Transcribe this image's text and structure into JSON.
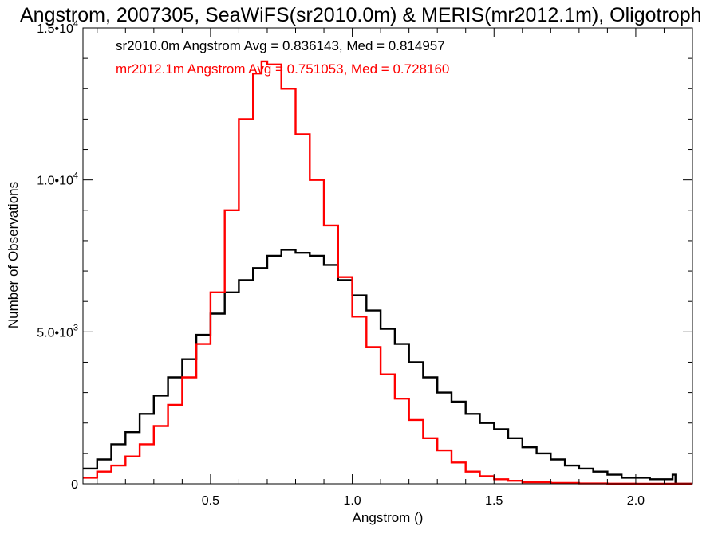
{
  "chart_data": {
    "type": "line",
    "title": "Angstrom, 2007305, SeaWiFS(sr2010.0m) & MERIS(mr2012.1m), Oligotroph",
    "xlabel": "Angstrom ()",
    "ylabel": "Number of Observations",
    "xlim": [
      0.05,
      2.2
    ],
    "ylim": [
      0,
      15000
    ],
    "x_ticks": [
      {
        "value": 0.5,
        "label": "0.5"
      },
      {
        "value": 1.0,
        "label": "1.0"
      },
      {
        "value": 1.5,
        "label": "1.5"
      },
      {
        "value": 2.0,
        "label": "2.0"
      }
    ],
    "y_ticks": [
      {
        "value": 0,
        "base": "0",
        "exp": ""
      },
      {
        "value": 5000,
        "base": "5.0•10",
        "exp": "3"
      },
      {
        "value": 10000,
        "base": "1.0•10",
        "exp": "4"
      },
      {
        "value": 15000,
        "base": "1.5•10",
        "exp": "4"
      }
    ],
    "grid": false,
    "legend_position": "top-left",
    "annotations": [
      {
        "text": "sr2010.0m Angstrom Avg = 0.836143, Med = 0.814957",
        "color": "#000000"
      },
      {
        "text": "mr2012.1m Angstrom Avg = 0.751053, Med = 0.728160",
        "color": "#ff0000"
      }
    ],
    "series": [
      {
        "color": "#000000",
        "style": "histogram-step",
        "x": [
          0.05,
          0.1,
          0.15,
          0.2,
          0.25,
          0.3,
          0.35,
          0.4,
          0.45,
          0.5,
          0.55,
          0.6,
          0.65,
          0.7,
          0.75,
          0.8,
          0.85,
          0.9,
          0.95,
          1.0,
          1.05,
          1.1,
          1.15,
          1.2,
          1.25,
          1.3,
          1.35,
          1.4,
          1.45,
          1.5,
          1.55,
          1.6,
          1.65,
          1.7,
          1.75,
          1.8,
          1.85,
          1.9,
          1.95,
          2.0,
          2.05,
          2.1,
          2.13,
          2.14,
          2.15
        ],
        "y": [
          500,
          800,
          1300,
          1700,
          2300,
          2900,
          3500,
          4100,
          4900,
          5600,
          6300,
          6700,
          7100,
          7500,
          7700,
          7600,
          7500,
          7200,
          6700,
          6200,
          5700,
          5100,
          4600,
          4000,
          3500,
          3000,
          2700,
          2300,
          2000,
          1800,
          1500,
          1200,
          1000,
          800,
          600,
          500,
          400,
          300,
          200,
          200,
          150,
          150,
          300,
          0,
          0
        ]
      },
      {
        "color": "#ff0000",
        "style": "histogram-step",
        "x": [
          0.05,
          0.1,
          0.15,
          0.2,
          0.25,
          0.3,
          0.35,
          0.4,
          0.45,
          0.5,
          0.55,
          0.6,
          0.65,
          0.68,
          0.7,
          0.75,
          0.8,
          0.85,
          0.9,
          0.95,
          1.0,
          1.05,
          1.1,
          1.15,
          1.2,
          1.25,
          1.3,
          1.35,
          1.4,
          1.45,
          1.5,
          1.55,
          1.6,
          1.7,
          1.8,
          1.9,
          2.0,
          2.1,
          2.2
        ],
        "y": [
          200,
          400,
          600,
          900,
          1300,
          1900,
          2600,
          3500,
          4600,
          6300,
          9000,
          12000,
          13500,
          13900,
          13800,
          13000,
          11500,
          10000,
          8500,
          6800,
          5500,
          4500,
          3600,
          2800,
          2100,
          1500,
          1100,
          700,
          400,
          250,
          150,
          100,
          50,
          30,
          10,
          5,
          0,
          0,
          0
        ]
      }
    ]
  }
}
